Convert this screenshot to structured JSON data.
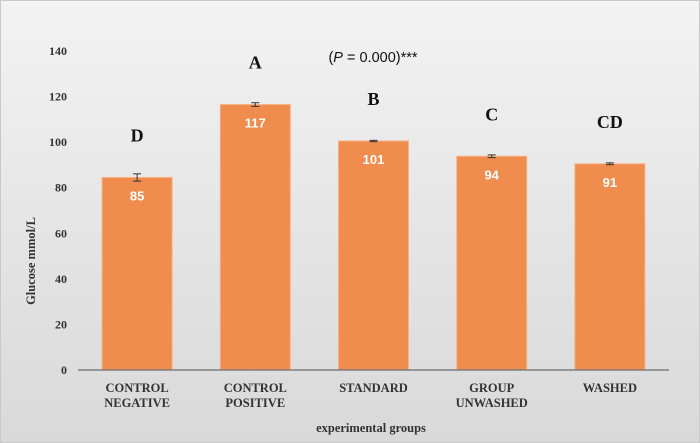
{
  "chart_data": {
    "type": "bar",
    "categories": [
      [
        "CONTROL",
        "NEGATIVE"
      ],
      [
        "CONTROL",
        "POSITIVE"
      ],
      [
        "STANDARD"
      ],
      [
        "GROUP",
        "UNWASHED"
      ],
      [
        "WASHED"
      ]
    ],
    "values": [
      84.5,
      116.5,
      100.5,
      93.8,
      90.5
    ],
    "value_labels": [
      "85",
      "117",
      "101",
      "94",
      "91"
    ],
    "errors": [
      1.6,
      0.8,
      0.3,
      0.6,
      0.4
    ],
    "significance_letters": [
      "D",
      "A",
      "B",
      "C",
      "CD"
    ],
    "annotation": {
      "prefix": "(",
      "italic": "P",
      "suffix": " = 0.000)***"
    },
    "title": "",
    "xlabel": "experimental groups",
    "ylabel": "Glucose mmol/L",
    "ylim": [
      0,
      140
    ],
    "yticks": [
      0,
      20,
      40,
      60,
      80,
      100,
      120,
      140
    ],
    "grid": false,
    "colors": {
      "bar": "#EF8C4E",
      "bar_edge": "#F7B184",
      "axis": "#7f7f7f",
      "error": "#333333"
    }
  }
}
